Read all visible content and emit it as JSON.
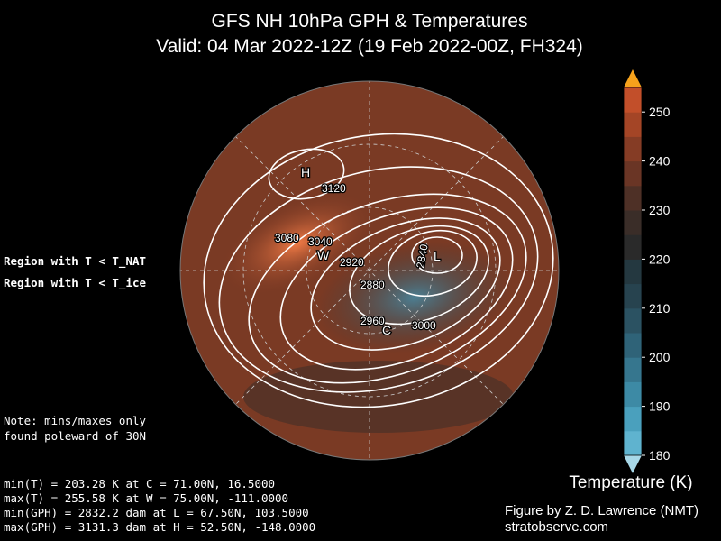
{
  "title": [
    "GFS NH 10hPa GPH & Temperatures",
    "Valid: 04 Mar 2022-12Z  (19 Feb 2022-00Z, FH324)"
  ],
  "legend": [
    {
      "text": "Region with T < T_NAT",
      "color": "#ff00ff"
    },
    {
      "text": "Region with T < T_ice",
      "color": "#7fff00"
    }
  ],
  "note": [
    "Note: mins/maxes only",
    "found poleward of 30N"
  ],
  "stats": [
    "min(T) = 203.28 K at C = 71.00N,   16.5000",
    "max(T) = 255.58 K at W = 75.00N, -111.0000",
    "min(GPH) = 2832.2 dam at L = 67.50N,  103.5000",
    "max(GPH) = 3131.3 dam at H = 52.50N, -148.0000"
  ],
  "contour_labels": [
    "3120",
    "3080",
    "3040",
    "2920",
    "2840",
    "2880",
    "2960",
    "3000"
  ],
  "markers": [
    "H",
    "L",
    "W",
    "C"
  ],
  "colorbar": {
    "label": "Temperature (K)",
    "clim": [
      180,
      255
    ],
    "ticks": [
      180,
      190,
      200,
      210,
      220,
      230,
      240,
      250
    ],
    "colors": [
      "#5fb3cf",
      "#4aa0bd",
      "#3d8aa5",
      "#36768e",
      "#2f6378",
      "#2b5262",
      "#27434f",
      "#243840",
      "#2a2a2a",
      "#3a2d28",
      "#4e3026",
      "#6a3525",
      "#853c25",
      "#a44526",
      "#c24f2a"
    ],
    "over": "#f6a21c",
    "under": "#a8d8e8"
  },
  "credit": [
    "Figure by Z. D. Lawrence (NMT)",
    "stratobserve.com"
  ]
}
